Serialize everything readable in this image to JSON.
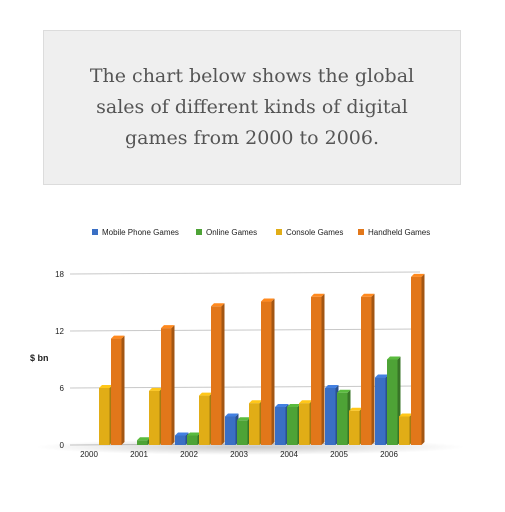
{
  "prompt": {
    "text": "The chart below shows the global sales of different kinds of digital games from 2000 to 2006."
  },
  "chart_data": {
    "type": "bar",
    "title": "",
    "xlabel": "",
    "ylabel": "$ bn",
    "ylim": [
      0,
      18
    ],
    "yticks": [
      0,
      6,
      12,
      18
    ],
    "grid": true,
    "legend": "top",
    "categories": [
      "2000",
      "2001",
      "2002",
      "2003",
      "2004",
      "2005",
      "2006"
    ],
    "series": [
      {
        "name": "Mobile Phone Games",
        "color": "#3a6fc4",
        "values": [
          0,
          0,
          1,
          3,
          4,
          6,
          7.1
        ]
      },
      {
        "name": "Online Games",
        "color": "#4ea336",
        "values": [
          0,
          0.5,
          1,
          2.6,
          4,
          5.5,
          9
        ]
      },
      {
        "name": "Console Games",
        "color": "#e1ad16",
        "values": [
          6,
          5.7,
          5.2,
          4.4,
          4.4,
          3.6,
          3
        ]
      },
      {
        "name": "Handheld Games",
        "color": "#e2771a",
        "values": [
          11.2,
          12.3,
          14.6,
          15.1,
          15.6,
          15.6,
          17.7
        ]
      }
    ]
  }
}
